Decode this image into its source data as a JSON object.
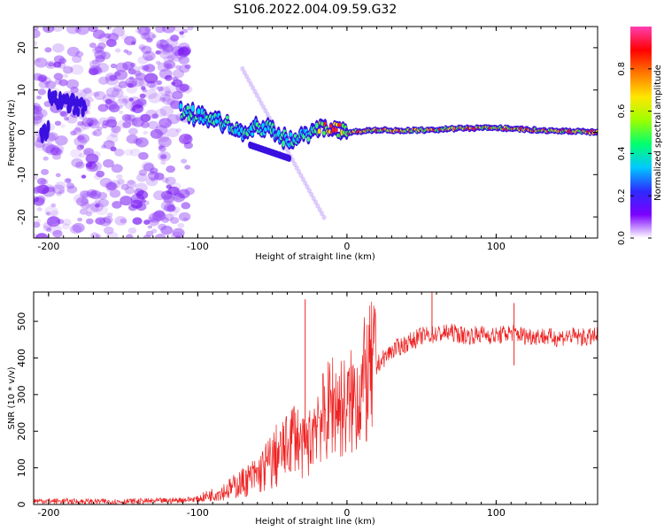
{
  "title": "S106.2022.004.09.59.G32",
  "chart_data": [
    {
      "type": "heatmap",
      "title": "S106.2022.004.09.59.G32",
      "xlabel": "Height of straight line (km)",
      "ylabel": "Frequency (Hz)",
      "xlim": [
        -210,
        168
      ],
      "ylim": [
        -25,
        25
      ],
      "xticks": [
        -200,
        -100,
        0,
        100
      ],
      "yticks": [
        -20,
        -10,
        0,
        10,
        20
      ],
      "colorbar": {
        "label": "Normalized spectral amplitude",
        "range": [
          0,
          1
        ],
        "ticks": [
          "0.0",
          "0.2",
          "0.4",
          "0.6",
          "0.8"
        ],
        "colormap": [
          "#ffffff",
          "#7a00ff",
          "#2e2bff",
          "#00c8ff",
          "#00ff70",
          "#9cff00",
          "#ffe600",
          "#ff7a00",
          "#ff0000",
          "#ff3fb0"
        ]
      },
      "ridge": [
        {
          "x": -200,
          "y": 8
        },
        {
          "x": -190,
          "y": 7
        },
        {
          "x": -180,
          "y": 6
        },
        {
          "x": -110,
          "y": 5
        },
        {
          "x": -100,
          "y": 4
        },
        {
          "x": -90,
          "y": 3
        },
        {
          "x": -80,
          "y": 2
        },
        {
          "x": -70,
          "y": 0
        },
        {
          "x": -60,
          "y": 1
        },
        {
          "x": -50,
          "y": 1
        },
        {
          "x": -40,
          "y": -2
        },
        {
          "x": -30,
          "y": -1
        },
        {
          "x": -20,
          "y": 1
        },
        {
          "x": -10,
          "y": 1
        },
        {
          "x": 0,
          "y": 0
        },
        {
          "x": 20,
          "y": 0.5
        },
        {
          "x": 50,
          "y": 0.5
        },
        {
          "x": 80,
          "y": 1
        },
        {
          "x": 100,
          "y": 1
        },
        {
          "x": 130,
          "y": 0.5
        },
        {
          "x": 168,
          "y": 0
        }
      ]
    },
    {
      "type": "line",
      "xlabel": "Height of straight line (km)",
      "ylabel": "SNR (10 * v/v)",
      "xlim": [
        -210,
        168
      ],
      "ylim": [
        0,
        580
      ],
      "xticks": [
        -200,
        -100,
        0,
        100
      ],
      "yticks": [
        0,
        100,
        200,
        300,
        400,
        500
      ],
      "line_color": "#ee2222",
      "series": [
        {
          "x": [
            -210,
            -180,
            -150,
            -120,
            -100,
            -80,
            -70,
            -60,
            -50,
            -40,
            -35,
            -30,
            -25,
            -20,
            -15,
            -10,
            0,
            10,
            20,
            30,
            40,
            50,
            60,
            70,
            80,
            90,
            100,
            110,
            120,
            130,
            140,
            150,
            160,
            168
          ],
          "values": [
            10,
            8,
            8,
            10,
            15,
            40,
            60,
            80,
            120,
            160,
            200,
            150,
            170,
            250,
            230,
            280,
            260,
            320,
            380,
            420,
            440,
            460,
            465,
            470,
            460,
            465,
            460,
            470,
            460,
            460,
            455,
            460,
            455,
            460
          ]
        }
      ],
      "spikes": [
        {
          "x": -28,
          "y": 560
        },
        {
          "x": 57,
          "y": 580
        },
        {
          "x": 112,
          "y": 550
        },
        {
          "x": 112,
          "y": 380
        }
      ]
    }
  ]
}
